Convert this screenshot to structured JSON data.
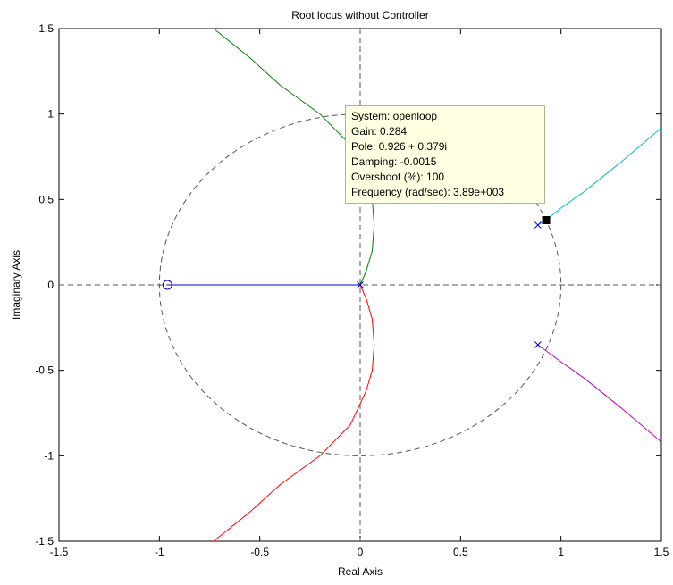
{
  "chart_data": {
    "type": "line",
    "title": "Root locus without Controller",
    "xlabel": "Real Axis",
    "ylabel": "Imaginary Axis",
    "xlim": [
      -1.5,
      1.5
    ],
    "ylim": [
      -1.5,
      1.5
    ],
    "xticks": [
      "-1.5",
      "-1",
      "-0.5",
      "0",
      "0.5",
      "1",
      "1.5"
    ],
    "yticks": [
      "-1.5",
      "-1",
      "-0.5",
      "0",
      "0.5",
      "1",
      "1.5"
    ],
    "grid": false,
    "unit_circle": true,
    "series": [
      {
        "color": "#0000cc",
        "points": [
          [
            -0.96,
            0
          ],
          [
            0,
            0
          ]
        ]
      },
      {
        "color": "#008000",
        "points": [
          [
            0,
            0
          ],
          [
            0.03,
            0.08
          ],
          [
            0.06,
            0.2
          ],
          [
            0.07,
            0.35
          ],
          [
            0.06,
            0.5
          ],
          [
            0.03,
            0.62
          ],
          [
            -0.05,
            0.82
          ],
          [
            -0.2,
            1.0
          ],
          [
            -0.4,
            1.17
          ],
          [
            -0.55,
            1.33
          ],
          [
            -0.73,
            1.5
          ]
        ]
      },
      {
        "color": "#ff0000",
        "points": [
          [
            0,
            0
          ],
          [
            0.03,
            -0.08
          ],
          [
            0.06,
            -0.2
          ],
          [
            0.07,
            -0.35
          ],
          [
            0.06,
            -0.5
          ],
          [
            0.03,
            -0.62
          ],
          [
            -0.05,
            -0.82
          ],
          [
            -0.2,
            -1.0
          ],
          [
            -0.4,
            -1.17
          ],
          [
            -0.55,
            -1.33
          ],
          [
            -0.73,
            -1.5
          ]
        ]
      },
      {
        "color": "#00bfbf",
        "points": [
          [
            0.885,
            0.35
          ],
          [
            0.926,
            0.379
          ],
          [
            1.0,
            0.45
          ],
          [
            1.12,
            0.55
          ],
          [
            1.3,
            0.72
          ],
          [
            1.5,
            0.92
          ]
        ]
      },
      {
        "color": "#bf00bf",
        "points": [
          [
            0.885,
            -0.35
          ],
          [
            1.0,
            -0.45
          ],
          [
            1.12,
            -0.55
          ],
          [
            1.3,
            -0.72
          ],
          [
            1.5,
            -0.92
          ]
        ]
      }
    ],
    "poles": [
      [
        0,
        0
      ],
      [
        0.885,
        0.35
      ],
      [
        0.885,
        -0.35
      ]
    ],
    "zeros": [
      [
        -0.96,
        0
      ]
    ],
    "selected_point": [
      0.926,
      0.379
    ],
    "datatip": {
      "system": "System: openloop",
      "gain": "Gain: 0.284",
      "pole": "Pole: 0.926 + 0.379i",
      "damping": "Damping: -0.0015",
      "overshoot": "Overshoot (%): 100",
      "frequency": "Frequency (rad/sec): 3.89e+003"
    }
  }
}
